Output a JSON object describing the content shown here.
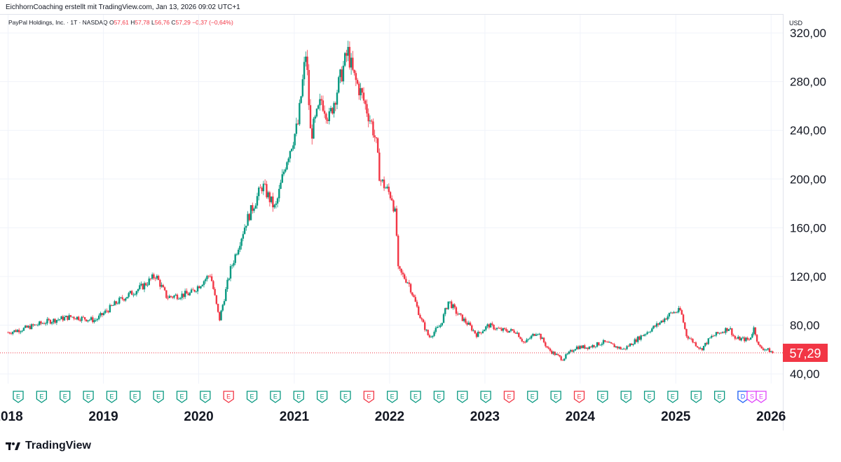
{
  "header": {
    "attribution": "EichhornCoaching erstellt mit TradingView.com, Jan 13, 2026 09:02 UTC+1"
  },
  "legend": {
    "symbol": "PayPal Holdings, Inc. · 1T · NASDAQ",
    "o_label": "O",
    "o_value": "57,61",
    "h_label": "H",
    "h_value": "57,78",
    "l_label": "L",
    "l_value": "56,76",
    "c_label": "C",
    "c_value": "57,29",
    "change": "−0,37 (−0,64%)"
  },
  "axis": {
    "currency": "USD"
  },
  "footer": {
    "brand": "TradingView"
  },
  "colors": {
    "up": "#089981",
    "down": "#f23645",
    "earnings": "#089981",
    "earnings_miss": "#f23645",
    "dividend": "#2962ff",
    "split": "#e040fb"
  },
  "chart_data": {
    "type": "candlestick",
    "title": "PayPal Holdings, Inc. · 1T · NASDAQ",
    "last_price": 57.29,
    "last_price_label": "57,29",
    "y_ticks": [
      40,
      80,
      120,
      160,
      200,
      240,
      280,
      320
    ],
    "y_tick_labels": [
      "40,00",
      "80,00",
      "120,00",
      "160,00",
      "200,00",
      "240,00",
      "280,00",
      "320,00"
    ],
    "ylim": [
      32,
      335
    ],
    "x_ticks": [
      "2018",
      "2019",
      "2020",
      "2021",
      "2022",
      "2023",
      "2024",
      "2025",
      "2026"
    ],
    "xlim": [
      "2017-12-01",
      "2026-02-15"
    ],
    "grid": true,
    "series": [
      {
        "values": [
          [
            "2018-01-01",
            74
          ],
          [
            "2018-03-01",
            77
          ],
          [
            "2018-06-01",
            83
          ],
          [
            "2018-09-01",
            87
          ],
          [
            "2018-12-01",
            84
          ],
          [
            "2019-03-01",
            100
          ],
          [
            "2019-06-01",
            112
          ],
          [
            "2019-07-20",
            121
          ],
          [
            "2019-09-01",
            103
          ],
          [
            "2019-12-01",
            106
          ],
          [
            "2020-02-15",
            122
          ],
          [
            "2020-03-20",
            84
          ],
          [
            "2020-05-01",
            125
          ],
          [
            "2020-07-01",
            165
          ],
          [
            "2020-09-01",
            195
          ],
          [
            "2020-10-20",
            175
          ],
          [
            "2020-12-01",
            215
          ],
          [
            "2021-01-15",
            245
          ],
          [
            "2021-02-15",
            305
          ],
          [
            "2021-03-05",
            235
          ],
          [
            "2021-04-15",
            265
          ],
          [
            "2021-05-15",
            250
          ],
          [
            "2021-07-25",
            305
          ],
          [
            "2021-08-15",
            285
          ],
          [
            "2021-09-15",
            270
          ],
          [
            "2021-10-25",
            245
          ],
          [
            "2021-11-10",
            230
          ],
          [
            "2021-11-25",
            200
          ],
          [
            "2022-01-10",
            185
          ],
          [
            "2022-01-25",
            168
          ],
          [
            "2022-02-03",
            125
          ],
          [
            "2022-03-15",
            115
          ],
          [
            "2022-05-01",
            85
          ],
          [
            "2022-06-01",
            70
          ],
          [
            "2022-07-15",
            80
          ],
          [
            "2022-08-15",
            100
          ],
          [
            "2022-09-15",
            90
          ],
          [
            "2022-11-01",
            80
          ],
          [
            "2022-12-01",
            72
          ],
          [
            "2023-01-15",
            80
          ],
          [
            "2023-03-01",
            76
          ],
          [
            "2023-05-01",
            75
          ],
          [
            "2023-06-01",
            65
          ],
          [
            "2023-07-20",
            75
          ],
          [
            "2023-09-01",
            60
          ],
          [
            "2023-10-25",
            52
          ],
          [
            "2023-12-15",
            62
          ],
          [
            "2024-02-01",
            62
          ],
          [
            "2024-04-01",
            66
          ],
          [
            "2024-06-15",
            60
          ],
          [
            "2024-08-15",
            70
          ],
          [
            "2024-10-20",
            80
          ],
          [
            "2024-12-15",
            90
          ],
          [
            "2025-01-20",
            92
          ],
          [
            "2025-02-10",
            72
          ],
          [
            "2025-04-08",
            60
          ],
          [
            "2025-05-15",
            70
          ],
          [
            "2025-07-25",
            78
          ],
          [
            "2025-08-15",
            69
          ],
          [
            "2025-10-10",
            68
          ],
          [
            "2025-10-28",
            78
          ],
          [
            "2025-11-15",
            62
          ],
          [
            "2025-12-15",
            60
          ],
          [
            "2026-01-12",
            57.29
          ]
        ]
      }
    ],
    "event_markers": [
      {
        "label": "E",
        "type": "earnings"
      },
      {
        "label": "E",
        "type": "earnings"
      },
      {
        "label": "E",
        "type": "earnings"
      },
      {
        "label": "E",
        "type": "earnings"
      },
      {
        "label": "E",
        "type": "earnings"
      },
      {
        "label": "E",
        "type": "earnings"
      },
      {
        "label": "E",
        "type": "earnings"
      },
      {
        "label": "E",
        "type": "earnings"
      },
      {
        "label": "E",
        "type": "earnings"
      },
      {
        "label": "E",
        "type": "earnings_miss"
      },
      {
        "label": "E",
        "type": "earnings"
      },
      {
        "label": "E",
        "type": "earnings"
      },
      {
        "label": "E",
        "type": "earnings"
      },
      {
        "label": "E",
        "type": "earnings"
      },
      {
        "label": "E",
        "type": "earnings"
      },
      {
        "label": "E",
        "type": "earnings_miss"
      },
      {
        "label": "E",
        "type": "earnings"
      },
      {
        "label": "E",
        "type": "earnings"
      },
      {
        "label": "E",
        "type": "earnings"
      },
      {
        "label": "E",
        "type": "earnings"
      },
      {
        "label": "E",
        "type": "earnings"
      },
      {
        "label": "E",
        "type": "earnings_miss"
      },
      {
        "label": "E",
        "type": "earnings"
      },
      {
        "label": "E",
        "type": "earnings"
      },
      {
        "label": "E",
        "type": "earnings_miss"
      },
      {
        "label": "E",
        "type": "earnings"
      },
      {
        "label": "E",
        "type": "earnings"
      },
      {
        "label": "E",
        "type": "earnings"
      },
      {
        "label": "E",
        "type": "earnings"
      },
      {
        "label": "E",
        "type": "earnings"
      },
      {
        "label": "E",
        "type": "earnings"
      },
      {
        "label": "E",
        "type": "earnings"
      },
      {
        "label": "D",
        "type": "dividend"
      },
      {
        "label": "S",
        "type": "split"
      },
      {
        "label": "E",
        "type": "split"
      }
    ]
  }
}
